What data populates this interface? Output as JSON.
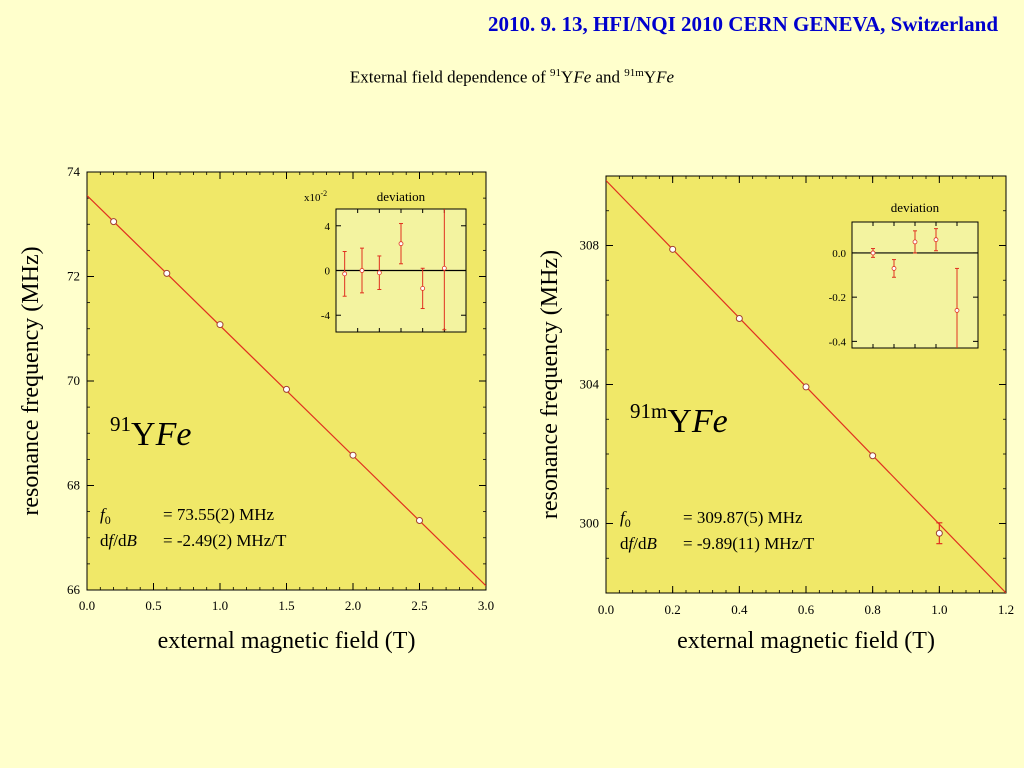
{
  "header": {
    "title": "2010. 9. 13, HFI/NQI 2010 CERN GENEVA, Switzerland"
  },
  "subtitle": {
    "prefix": "External field dependence of ",
    "iso1_mass": "91",
    "iso1_sym": "Y",
    "host": "Fe",
    "conj": " and ",
    "iso2_mass": "91m",
    "iso2_sym": "Y"
  },
  "colors": {
    "background": "#ffffcc",
    "plot_area": "#f0e868",
    "inset_area": "#f3f3a0",
    "fit_line": "#e03020",
    "error_bar": "#e03020",
    "header": "#0000cc"
  },
  "chart_data": [
    {
      "type": "scatter",
      "fit_line": true,
      "label_mass": "91",
      "label_symbol": "Y",
      "label_host": "Fe",
      "xlabel": "external magnetic field (T)",
      "ylabel": "resonance frequency (MHz)",
      "xlim": [
        0.0,
        3.0
      ],
      "ylim": [
        66,
        74
      ],
      "xticks": [
        "0.0",
        "0.5",
        "1.0",
        "1.5",
        "2.0",
        "2.5",
        "3.0"
      ],
      "yticks": [
        "66",
        "68",
        "70",
        "72",
        "74"
      ],
      "x": [
        0.2,
        0.6,
        1.0,
        1.5,
        2.0,
        2.5
      ],
      "y": [
        73.05,
        72.06,
        71.08,
        69.84,
        68.58,
        67.33
      ],
      "fit": {
        "f0": 73.55,
        "slope": -2.49
      },
      "params": {
        "f0_value": "= 73.55(2) MHz",
        "slope_value": "= -2.49(2) MHz/T"
      },
      "inset": {
        "title": "deviation",
        "multiplier": "x10",
        "multiplier_exp": "-2",
        "xlim": [
          0.0,
          3.0
        ],
        "ylim": [
          -5.5,
          5.5
        ],
        "yticks": [
          "-4",
          "0",
          "4"
        ],
        "x": [
          0.2,
          0.6,
          1.0,
          1.5,
          2.0,
          2.5
        ],
        "y": [
          -0.3,
          0.0,
          -0.2,
          2.4,
          -1.6,
          0.2
        ],
        "err": [
          2.0,
          2.0,
          1.5,
          1.8,
          1.8,
          5.5
        ]
      }
    },
    {
      "type": "scatter",
      "fit_line": true,
      "label_mass": "91m",
      "label_symbol": "Y",
      "label_host": "Fe",
      "xlabel": "external magnetic field (T)",
      "ylabel": "resonance frequency (MHz)",
      "xlim": [
        0.0,
        1.2
      ],
      "ylim": [
        298,
        310
      ],
      "xticks": [
        "0.0",
        "0.2",
        "0.4",
        "0.6",
        "0.8",
        "1.0",
        "1.2"
      ],
      "yticks": [
        "300",
        "304",
        "308"
      ],
      "x": [
        0.2,
        0.4,
        0.6,
        0.8,
        1.0
      ],
      "y": [
        307.89,
        305.9,
        303.93,
        301.95,
        299.72
      ],
      "err": [
        0,
        0,
        0,
        0,
        0.3
      ],
      "fit": {
        "f0": 309.87,
        "slope": -9.89
      },
      "params": {
        "f0_value": "= 309.87(5) MHz",
        "slope_value": "= -9.89(11) MHz/T"
      },
      "inset": {
        "title": "deviation",
        "xlim": [
          0.0,
          1.2
        ],
        "ylim": [
          -0.43,
          0.14
        ],
        "yticks": [
          "-0.4",
          "-0.2",
          "0.0"
        ],
        "x": [
          0.2,
          0.4,
          0.6,
          0.8,
          1.0
        ],
        "y": [
          0.0,
          -0.07,
          0.05,
          0.06,
          -0.26
        ],
        "err": [
          0.02,
          0.04,
          0.05,
          0.05,
          0.19
        ]
      }
    }
  ]
}
